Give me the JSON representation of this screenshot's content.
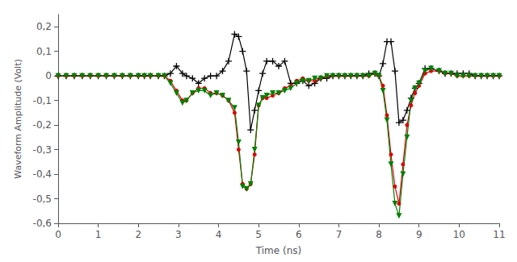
{
  "chart_data": {
    "type": "line",
    "xlabel": "Time (ns)",
    "ylabel": "Waveform Amplitude (Volt)",
    "xlim": [
      0,
      11
    ],
    "ylim": [
      -0.6,
      0.25
    ],
    "xticks": [
      0,
      1,
      2,
      3,
      4,
      5,
      6,
      7,
      8,
      9,
      10,
      11
    ],
    "yticks": [
      {
        "value": -0.6,
        "label": "-0,6"
      },
      {
        "value": -0.5,
        "label": "-0,5"
      },
      {
        "value": -0.4,
        "label": "-0,4"
      },
      {
        "value": -0.3,
        "label": "-0,3"
      },
      {
        "value": -0.2,
        "label": "-0,2"
      },
      {
        "value": -0.1,
        "label": "-0,1"
      },
      0,
      {
        "value": 0.1,
        "label": "0,1"
      },
      {
        "value": 0.2,
        "label": "0,2"
      }
    ],
    "grid": false,
    "x": [
      0.0,
      0.2,
      0.4,
      0.6,
      0.8,
      1.0,
      1.2,
      1.4,
      1.6,
      1.8,
      2.0,
      2.15,
      2.3,
      2.5,
      2.65,
      2.8,
      2.95,
      3.1,
      3.2,
      3.35,
      3.5,
      3.65,
      3.8,
      3.95,
      4.1,
      4.25,
      4.4,
      4.5,
      4.6,
      4.7,
      4.8,
      4.9,
      5.0,
      5.1,
      5.2,
      5.35,
      5.5,
      5.65,
      5.8,
      5.95,
      6.1,
      6.25,
      6.4,
      6.55,
      6.7,
      6.85,
      7.0,
      7.15,
      7.3,
      7.45,
      7.6,
      7.75,
      7.9,
      8.0,
      8.1,
      8.2,
      8.3,
      8.4,
      8.5,
      8.6,
      8.7,
      8.8,
      8.9,
      9.0,
      9.15,
      9.3,
      9.5,
      9.65,
      9.8,
      9.95,
      10.1,
      10.25,
      10.4,
      10.55,
      10.7,
      10.85,
      11.0
    ],
    "series": [
      {
        "color": "#000000",
        "marker": "plus",
        "values": [
          0.0,
          0.0,
          0.0,
          0.0,
          0.0,
          0.0,
          0.0,
          0.0,
          0.0,
          0.0,
          0.0,
          0.0,
          0.0,
          0.0,
          0.0,
          0.01,
          0.04,
          0.01,
          0.0,
          -0.01,
          -0.03,
          -0.01,
          0.0,
          0.0,
          0.02,
          0.06,
          0.17,
          0.16,
          0.1,
          0.02,
          -0.22,
          -0.14,
          -0.06,
          0.01,
          0.06,
          0.06,
          0.04,
          0.06,
          -0.03,
          -0.03,
          -0.02,
          -0.04,
          -0.03,
          -0.01,
          -0.01,
          0.0,
          0.0,
          0.0,
          0.0,
          0.0,
          0.0,
          0.01,
          0.01,
          0.0,
          0.05,
          0.14,
          0.14,
          0.02,
          -0.19,
          -0.18,
          -0.14,
          -0.09,
          -0.05,
          -0.03,
          0.03,
          0.03,
          0.02,
          0.01,
          0.01,
          0.01,
          0.01,
          0.01,
          0.0,
          0.0,
          0.0,
          0.0,
          0.0
        ]
      },
      {
        "color": "#dd0000",
        "marker": "circle",
        "values": [
          0.0,
          0.0,
          0.0,
          0.0,
          0.0,
          0.0,
          0.0,
          0.0,
          0.0,
          0.0,
          0.0,
          0.0,
          0.0,
          0.0,
          0.0,
          -0.02,
          -0.06,
          -0.1,
          -0.1,
          -0.07,
          -0.05,
          -0.05,
          -0.07,
          -0.07,
          -0.08,
          -0.1,
          -0.15,
          -0.3,
          -0.44,
          -0.46,
          -0.44,
          -0.32,
          -0.12,
          -0.09,
          -0.09,
          -0.08,
          -0.07,
          -0.05,
          -0.04,
          -0.02,
          -0.01,
          -0.02,
          -0.02,
          -0.01,
          0.0,
          0.0,
          0.0,
          0.0,
          0.0,
          0.0,
          0.0,
          0.0,
          0.01,
          0.0,
          -0.04,
          -0.16,
          -0.32,
          -0.45,
          -0.52,
          -0.36,
          -0.2,
          -0.12,
          -0.07,
          -0.04,
          0.01,
          0.02,
          0.02,
          0.01,
          0.01,
          0.0,
          0.0,
          0.0,
          0.0,
          0.0,
          0.0,
          0.0,
          0.0
        ]
      },
      {
        "color": "#008000",
        "marker": "triangle_down",
        "values": [
          0.0,
          0.0,
          0.0,
          0.0,
          0.0,
          0.0,
          0.0,
          0.0,
          0.0,
          0.0,
          0.0,
          0.0,
          0.0,
          0.0,
          0.0,
          -0.03,
          -0.07,
          -0.11,
          -0.1,
          -0.07,
          -0.06,
          -0.06,
          -0.08,
          -0.07,
          -0.08,
          -0.1,
          -0.13,
          -0.27,
          -0.45,
          -0.46,
          -0.44,
          -0.3,
          -0.12,
          -0.09,
          -0.08,
          -0.07,
          -0.07,
          -0.06,
          -0.05,
          -0.03,
          -0.02,
          -0.02,
          -0.01,
          -0.01,
          0.0,
          0.0,
          0.0,
          0.0,
          0.0,
          0.0,
          0.0,
          0.0,
          0.01,
          0.0,
          -0.06,
          -0.18,
          -0.36,
          -0.52,
          -0.57,
          -0.4,
          -0.25,
          -0.1,
          -0.05,
          -0.03,
          0.02,
          0.03,
          0.02,
          0.01,
          0.01,
          0.0,
          0.0,
          0.0,
          0.0,
          0.0,
          0.0,
          0.0,
          0.0
        ]
      }
    ]
  }
}
